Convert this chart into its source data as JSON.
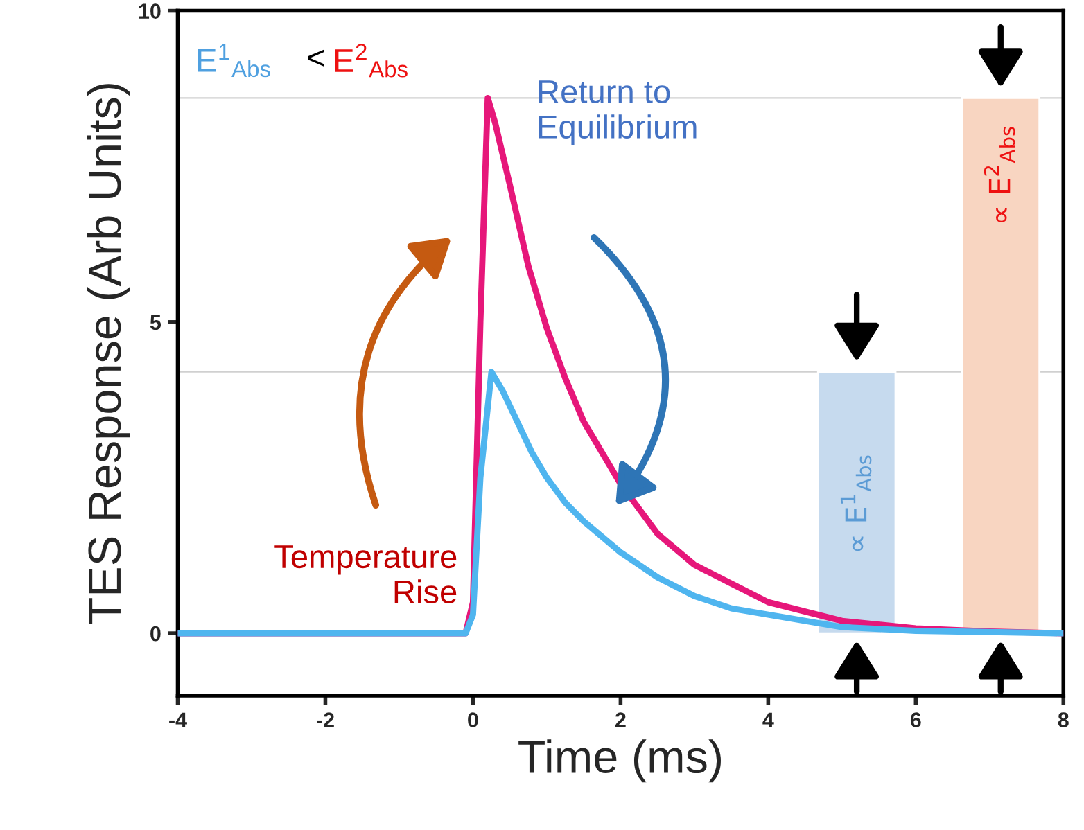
{
  "chart_data": {
    "type": "line",
    "xlabel": "Time (ms)",
    "ylabel": "TES Response (Arb Units)",
    "xlim": [
      -4,
      8
    ],
    "xticks": [
      -4,
      -2,
      0,
      2,
      4,
      6,
      8
    ],
    "ylim": [
      -1,
      10
    ],
    "yticks": [
      0,
      5,
      10
    ],
    "grid": false,
    "legend": false,
    "marker": "none",
    "line_style": "solid",
    "series": [
      {
        "type": "bar",
        "color": "#c6daee",
        "x": [
          5.2
        ],
        "values": [
          4.2
        ]
      },
      {
        "type": "bar",
        "color": "#f8d5c1",
        "x": [
          7.15
        ],
        "values": [
          8.6
        ]
      },
      {
        "type": "line",
        "color": "#e6177a",
        "x": [
          -4,
          -0.1,
          0,
          0.1,
          0.2,
          0.3,
          0.5,
          0.75,
          1,
          1.25,
          1.5,
          2,
          2.5,
          3,
          3.5,
          4,
          5,
          6,
          7,
          8
        ],
        "values": [
          0,
          0,
          0.5,
          5,
          8.6,
          8.2,
          7.2,
          5.9,
          4.9,
          4.1,
          3.4,
          2.4,
          1.6,
          1.1,
          0.8,
          0.5,
          0.2,
          0.08,
          0.03,
          0
        ]
      },
      {
        "type": "line",
        "color": "#4fb5ef",
        "x": [
          -4,
          -0.1,
          0,
          0.1,
          0.25,
          0.4,
          0.6,
          0.8,
          1,
          1.25,
          1.5,
          2,
          2.5,
          3,
          3.5,
          4,
          5,
          6,
          7,
          8
        ],
        "values": [
          0,
          0,
          0.3,
          2.5,
          4.2,
          3.9,
          3.4,
          2.9,
          2.5,
          2.1,
          1.8,
          1.3,
          0.9,
          0.6,
          0.4,
          0.3,
          0.1,
          0.04,
          0.02,
          0
        ]
      }
    ],
    "ref_lines": [
      {
        "axis": "y",
        "value": 8.6,
        "color": "#d0d0d0"
      },
      {
        "axis": "y",
        "value": 4.2,
        "color": "#d0d0d0"
      }
    ],
    "annotations": [
      "E$^{1}$$_{Abs}$",
      "<",
      "E$^{2}$$_{Abs}$",
      "Return to\nEquilibrium",
      "Temperature\nRise",
      "∝ E$^{1}$$_{Abs}$",
      "∝ E$^{2}$$_{Abs}$"
    ]
  }
}
